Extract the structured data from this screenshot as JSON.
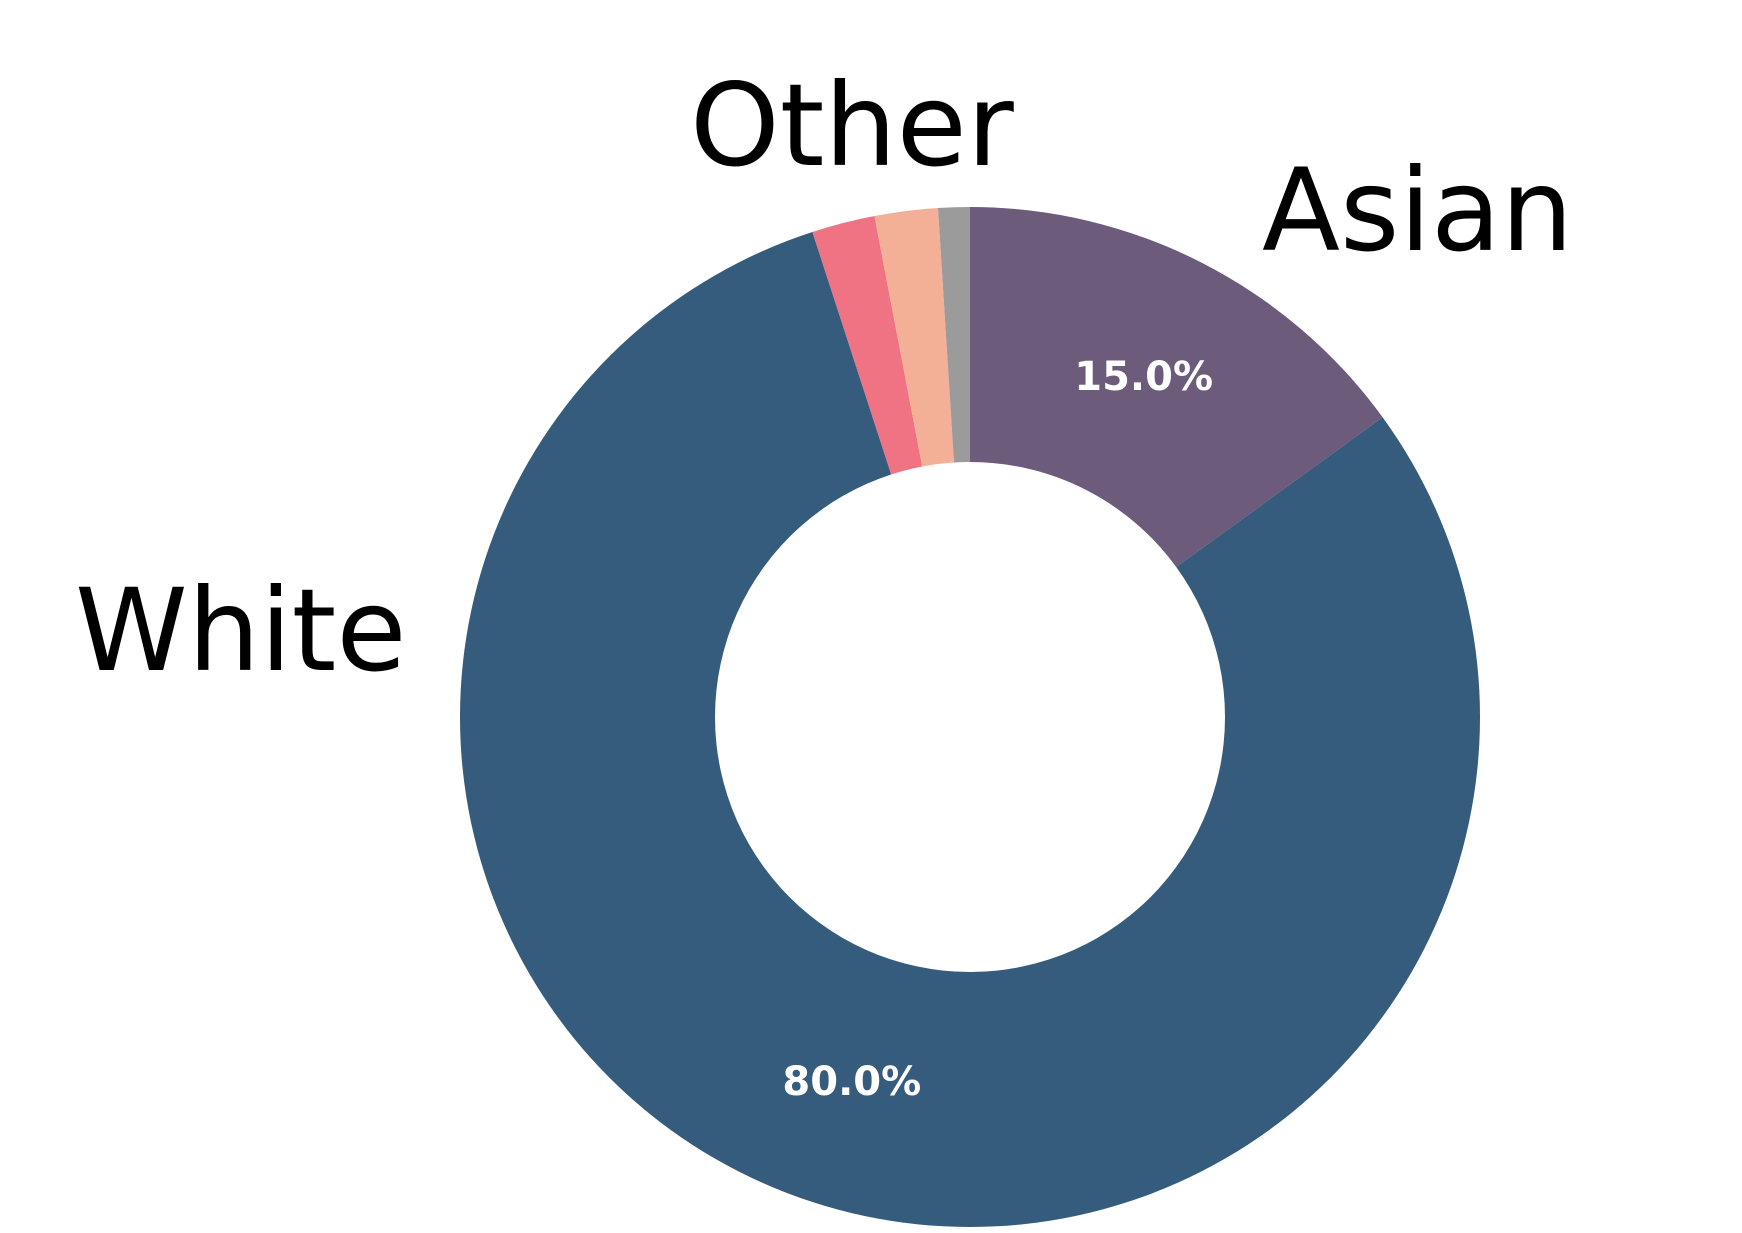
{
  "chart_data": {
    "type": "pie",
    "donut": true,
    "slices": [
      {
        "label": "Asian",
        "value": 15.0,
        "display": "15.0%",
        "color": "#6c5b7b"
      },
      {
        "label": "White",
        "value": 80.0,
        "display": "80.0%",
        "color": "#355c7d"
      },
      {
        "label": "",
        "value": 2.0,
        "display": "",
        "color": "#f07384"
      },
      {
        "label": "",
        "value": 2.0,
        "display": "",
        "color": "#f4b097"
      },
      {
        "label": "",
        "value": 1.0,
        "display": "",
        "color": "#9b9b9b"
      }
    ],
    "outer_labels": {
      "asian": "Asian",
      "white": "White",
      "other": "Other"
    },
    "start_angle": "top",
    "direction": "clockwise"
  }
}
